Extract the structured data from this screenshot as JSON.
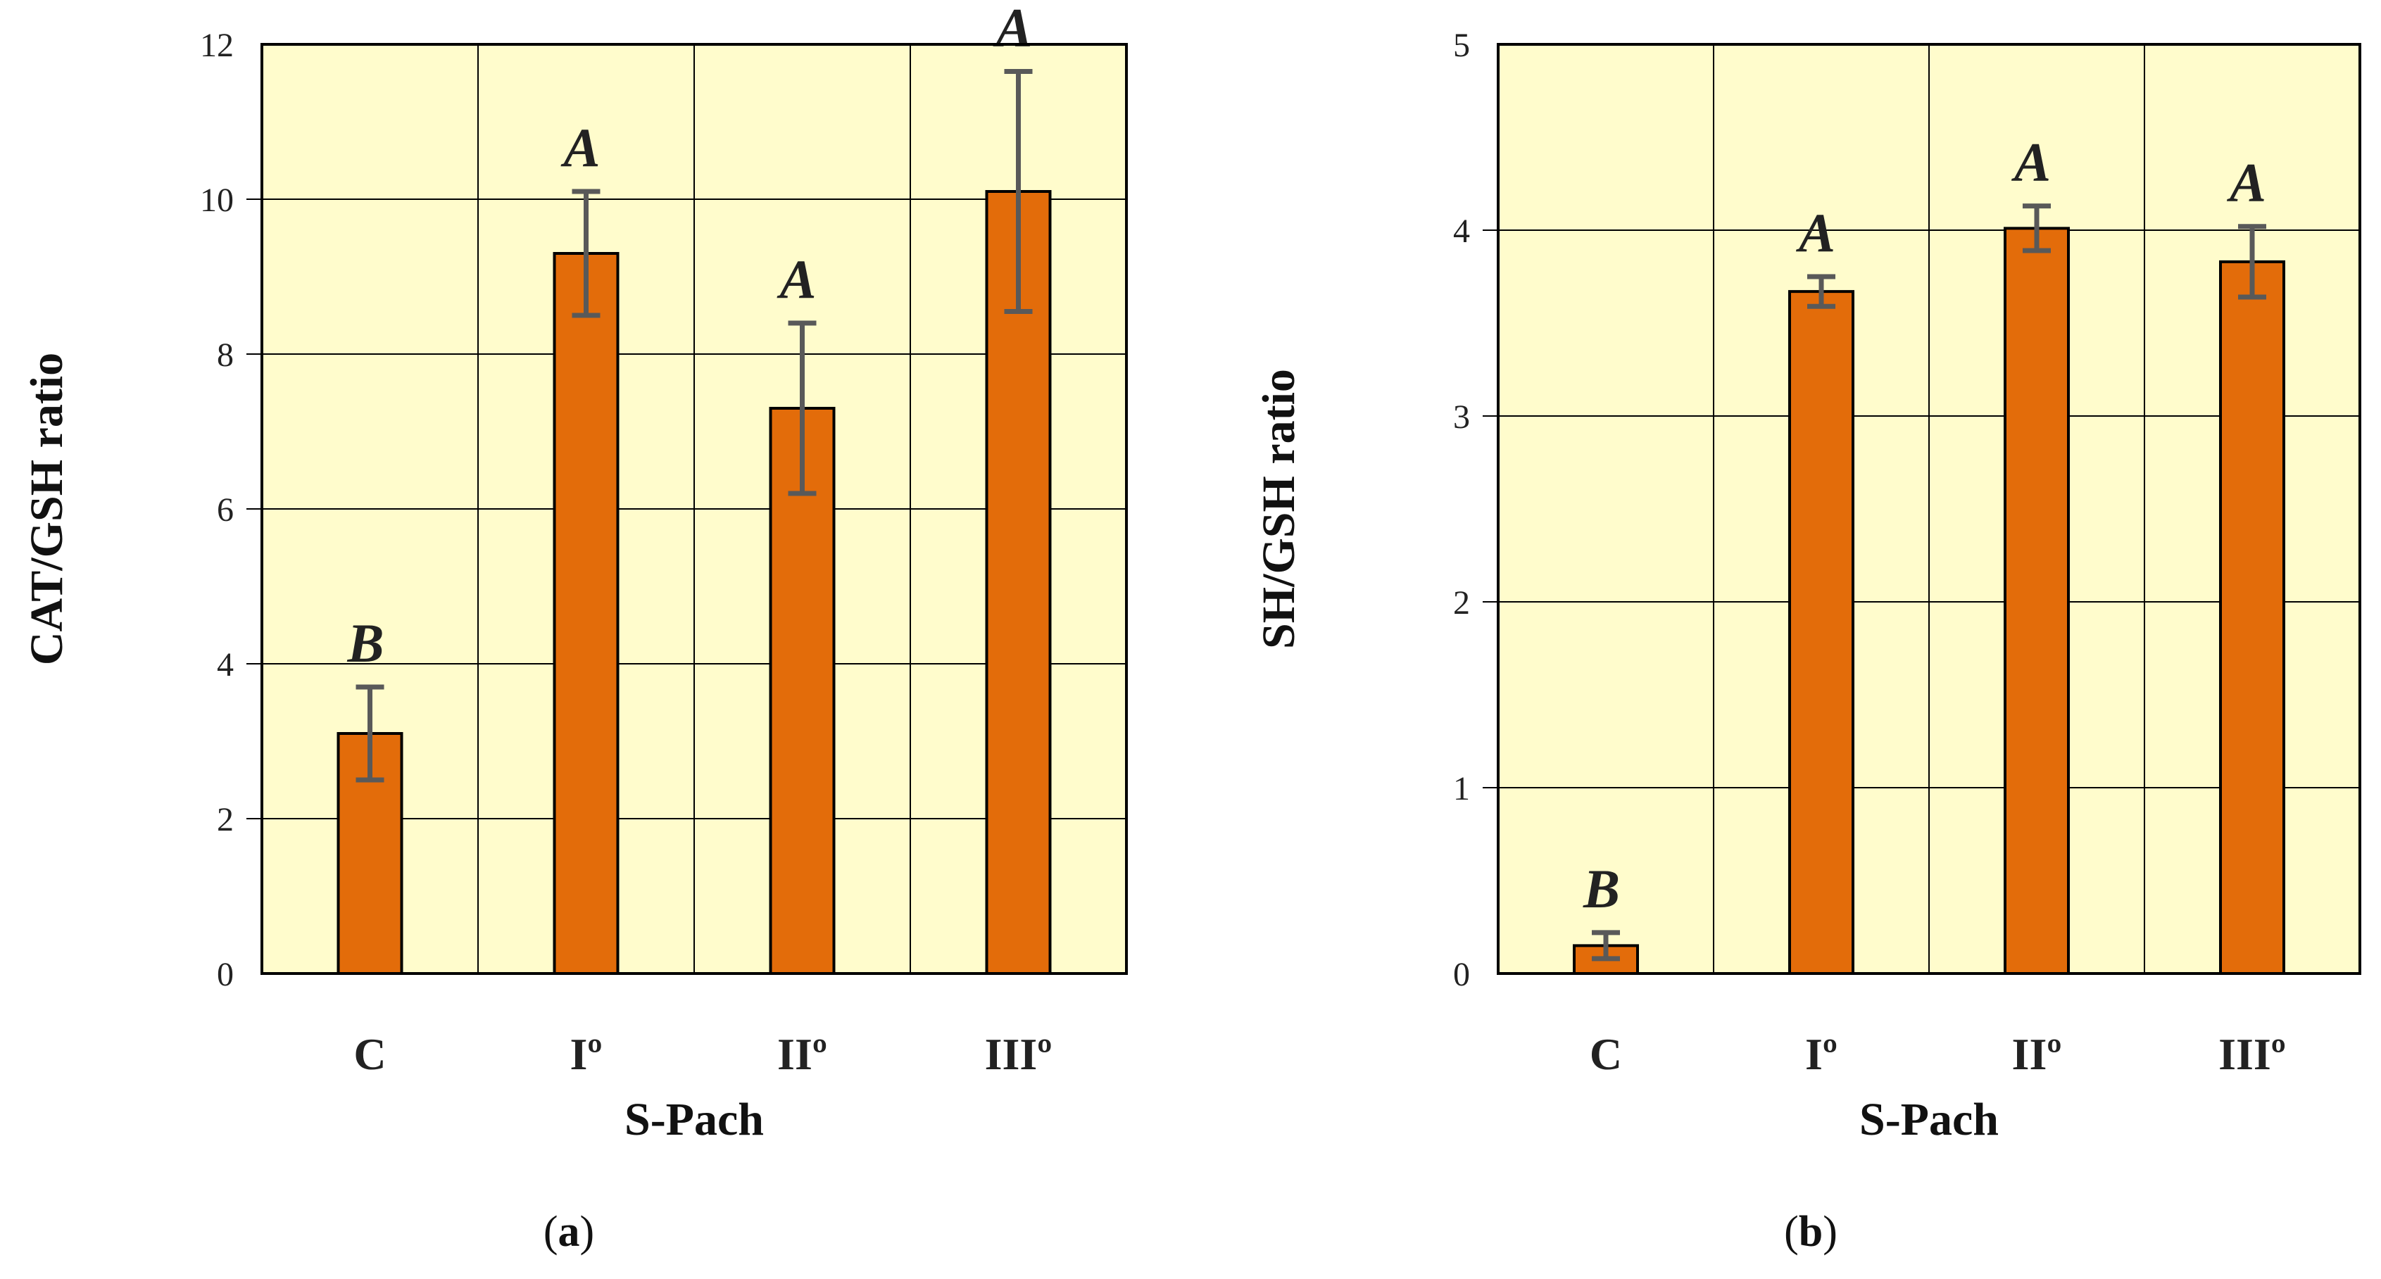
{
  "colors": {
    "plot_background": "#FFFCCC",
    "bar_fill": "#E36C0A",
    "bar_outline": "#000000",
    "error_bar": "#595959",
    "grid": "#000000"
  },
  "chart_data": [
    {
      "panel_label_open": "(",
      "panel_label_letter": "a",
      "panel_label_close": ")",
      "type": "bar",
      "xlabel": "S-Pach",
      "ylabel": "CAT/GSH ratio",
      "categories": [
        "C",
        "Iº",
        "IIº",
        "IIIº"
      ],
      "values": [
        3.1,
        9.3,
        7.3,
        10.1
      ],
      "errors": [
        0.6,
        0.8,
        1.1,
        1.55
      ],
      "significance": [
        "B",
        "A",
        "A",
        "A"
      ],
      "ylim": [
        0,
        12
      ],
      "yticks": [
        "0",
        "2",
        "4",
        "6",
        "8",
        "10",
        "12"
      ],
      "grid": true
    },
    {
      "panel_label_open": "(",
      "panel_label_letter": "b",
      "panel_label_close": ")",
      "type": "bar",
      "xlabel": "S-Pach",
      "ylabel": "SH/GSH ratio",
      "categories": [
        "C",
        "Iº",
        "IIº",
        "IIIº"
      ],
      "values": [
        0.15,
        3.67,
        4.01,
        3.83
      ],
      "errors": [
        0.07,
        0.08,
        0.12,
        0.19
      ],
      "significance": [
        "B",
        "A",
        "A",
        "A"
      ],
      "ylim": [
        0,
        5
      ],
      "yticks": [
        "0",
        "1",
        "2",
        "3",
        "4",
        "5"
      ],
      "grid": true
    }
  ]
}
